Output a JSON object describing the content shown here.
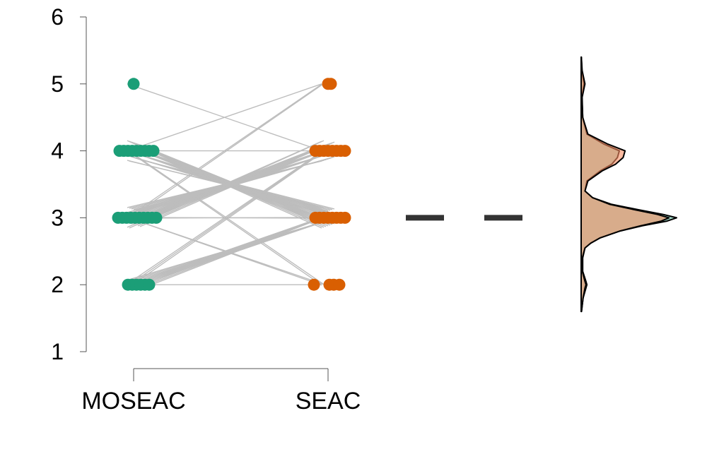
{
  "chart_data": {
    "type": "scatter",
    "subtype": "paired-raincloud",
    "title": "",
    "xlabel": "",
    "ylabel": "",
    "ylim": [
      1,
      6
    ],
    "yticks": [
      "1",
      "2",
      "3",
      "4",
      "5",
      "6"
    ],
    "categories": [
      "MOSEAC",
      "SEAC"
    ],
    "series": [
      {
        "name": "MOSEAC",
        "color": "#1b9e77",
        "points": [
          {
            "y": 5,
            "jitter": [
              0
            ]
          },
          {
            "y": 4,
            "jitter": [
              -0.5,
              -0.35,
              -0.2,
              -0.05,
              0.1,
              0.25,
              0.4,
              0.55,
              0.7
            ]
          },
          {
            "y": 3,
            "jitter": [
              -0.55,
              -0.4,
              -0.25,
              -0.1,
              0.05,
              0.2,
              0.35,
              0.5,
              0.65,
              0.8
            ]
          },
          {
            "y": 2,
            "jitter": [
              -0.2,
              -0.05,
              0.1,
              0.25,
              0.4,
              0.55
            ]
          }
        ],
        "mean": 3
      },
      {
        "name": "SEAC",
        "color": "#d95f02",
        "points": [
          {
            "y": 5,
            "jitter": [
              0,
              0.1
            ]
          },
          {
            "y": 4,
            "jitter": [
              -0.45,
              -0.3,
              -0.15,
              0,
              0.15,
              0.3,
              0.45,
              0.6
            ]
          },
          {
            "y": 3,
            "jitter": [
              -0.45,
              -0.3,
              -0.15,
              0,
              0.15,
              0.3,
              0.45,
              0.6
            ]
          },
          {
            "y": 2,
            "jitter": [
              -0.5,
              0.05,
              0.2,
              0.4
            ]
          }
        ],
        "mean": 3
      }
    ],
    "paired_lines": [
      {
        "from": 5,
        "to": 4,
        "count": 1
      },
      {
        "from": 4,
        "to": 5,
        "count": 1
      },
      {
        "from": 3,
        "to": 5,
        "count": 2
      },
      {
        "from": 4,
        "to": 4,
        "count": 1
      },
      {
        "from": 4,
        "to": 3,
        "count": 30
      },
      {
        "from": 4,
        "to": 2,
        "count": 2
      },
      {
        "from": 3,
        "to": 4,
        "count": 30
      },
      {
        "from": 3,
        "to": 3,
        "count": 2
      },
      {
        "from": 3,
        "to": 2,
        "count": 2
      },
      {
        "from": 2,
        "to": 4,
        "count": 3
      },
      {
        "from": 2,
        "to": 3,
        "count": 14
      },
      {
        "from": 2,
        "to": 2,
        "count": 1
      }
    ],
    "density": {
      "grid": [
        1.6,
        1.8,
        1.95,
        2.0,
        2.05,
        2.2,
        2.4,
        2.55,
        2.62,
        2.7,
        2.8,
        2.88,
        2.95,
        3.0,
        3.05,
        3.12,
        3.2,
        3.3,
        3.4,
        3.55,
        3.7,
        3.8,
        3.9,
        4.0,
        4.1,
        4.25,
        4.5,
        4.8,
        5.0,
        5.2,
        5.4
      ],
      "series": [
        {
          "name": "MOSEAC",
          "color": "#66c2a5",
          "values": [
            0.02,
            0.1,
            0.25,
            0.3,
            0.25,
            0.08,
            0.08,
            0.2,
            0.5,
            1.0,
            2.0,
            3.2,
            4.5,
            5.0,
            4.3,
            3.0,
            1.6,
            0.6,
            0.2,
            0.3,
            1.0,
            1.6,
            1.9,
            2.0,
            1.2,
            0.3,
            0.08,
            0.04,
            0.15,
            0.04,
            0.01
          ]
        },
        {
          "name": "SEAC",
          "color": "#fc8d62",
          "values": [
            0.02,
            0.1,
            0.2,
            0.25,
            0.2,
            0.06,
            0.06,
            0.2,
            0.5,
            1.0,
            2.0,
            3.1,
            4.2,
            4.6,
            4.0,
            2.8,
            1.5,
            0.6,
            0.2,
            0.35,
            1.1,
            1.8,
            2.2,
            2.3,
            1.4,
            0.35,
            0.08,
            0.05,
            0.2,
            0.05,
            0.01
          ]
        }
      ]
    }
  }
}
